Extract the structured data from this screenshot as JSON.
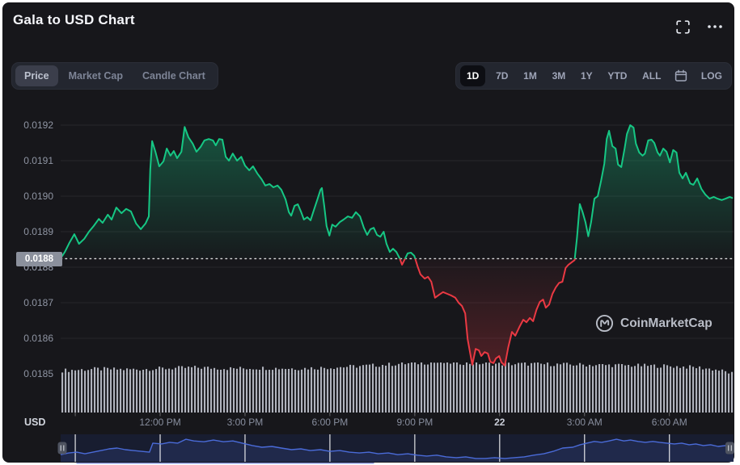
{
  "header": {
    "title": "Gala to USD Chart"
  },
  "toolbar": {
    "chart_type_tabs": [
      {
        "label": "Price",
        "active": true
      },
      {
        "label": "Market Cap",
        "active": false
      },
      {
        "label": "Candle Chart",
        "active": false
      }
    ],
    "range_tabs": [
      {
        "label": "1D",
        "active": true
      },
      {
        "label": "7D",
        "active": false
      },
      {
        "label": "1M",
        "active": false
      },
      {
        "label": "3M",
        "active": false
      },
      {
        "label": "1Y",
        "active": false
      },
      {
        "label": "YTD",
        "active": false
      },
      {
        "label": "ALL",
        "active": false
      }
    ],
    "log_label": "LOG"
  },
  "watermark": {
    "text": "CoinMarketCap"
  },
  "axis": {
    "usd_label": "USD"
  },
  "price_badge": {
    "value": "0.0188"
  },
  "colors": {
    "green": "#16c784",
    "red": "#ea3943",
    "nav_line": "#4a6bd8",
    "nav_fill": "rgba(74,107,216,0.16)",
    "volume_bar": "#c6cad4",
    "badge_bg": "#8b909c",
    "grid": "rgba(255,255,255,0.07)",
    "dotted": "rgba(255,255,255,0.85)"
  },
  "chart_data": {
    "type": "area",
    "title": "Gala to USD Chart",
    "pair": "GALA/USD",
    "range_selected": "1D",
    "legend_position": "none",
    "grid": "horizontal-only",
    "x_unit": "minutes from start (~8:30 AM Nov 21 to ~8:20 AM Nov 22)",
    "x_domain": [
      0,
      1427
    ],
    "y_domain": [
      0.018391,
      0.01925
    ],
    "threshold": 0.018824,
    "y_ticks": [
      0.0192,
      0.0191,
      0.019,
      0.0189,
      0.0188,
      0.0187,
      0.0186,
      0.0185
    ],
    "x_ticks": [
      {
        "t": 31,
        "label": ""
      },
      {
        "t": 211,
        "label": "12:00 PM"
      },
      {
        "t": 391,
        "label": "3:00 PM"
      },
      {
        "t": 571,
        "label": "6:00 PM"
      },
      {
        "t": 751,
        "label": "9:00 PM"
      },
      {
        "t": 931,
        "label": "22",
        "strong": true
      },
      {
        "t": 1111,
        "label": "3:00 AM"
      },
      {
        "t": 1291,
        "label": "6:00 AM"
      }
    ],
    "series": {
      "name": "GALA price (USD)",
      "points": [
        [
          0,
          0.018825
        ],
        [
          9,
          0.018843
        ],
        [
          19,
          0.01887
        ],
        [
          29,
          0.018893
        ],
        [
          39,
          0.018866
        ],
        [
          50,
          0.01888
        ],
        [
          60,
          0.0189
        ],
        [
          70,
          0.018916
        ],
        [
          81,
          0.018936
        ],
        [
          89,
          0.018925
        ],
        [
          100,
          0.018948
        ],
        [
          108,
          0.018934
        ],
        [
          118,
          0.018968
        ],
        [
          129,
          0.018952
        ],
        [
          139,
          0.018964
        ],
        [
          149,
          0.018957
        ],
        [
          160,
          0.018923
        ],
        [
          170,
          0.018907
        ],
        [
          180,
          0.018923
        ],
        [
          187,
          0.018943
        ],
        [
          190,
          0.019075
        ],
        [
          194,
          0.019155
        ],
        [
          201,
          0.019125
        ],
        [
          209,
          0.019084
        ],
        [
          218,
          0.019098
        ],
        [
          225,
          0.019134
        ],
        [
          233,
          0.019114
        ],
        [
          240,
          0.019127
        ],
        [
          247,
          0.019107
        ],
        [
          256,
          0.019125
        ],
        [
          263,
          0.019195
        ],
        [
          271,
          0.019166
        ],
        [
          280,
          0.019148
        ],
        [
          288,
          0.019125
        ],
        [
          297,
          0.019139
        ],
        [
          305,
          0.019157
        ],
        [
          314,
          0.019161
        ],
        [
          323,
          0.019157
        ],
        [
          329,
          0.019143
        ],
        [
          336,
          0.019161
        ],
        [
          343,
          0.019159
        ],
        [
          350,
          0.019111
        ],
        [
          357,
          0.0191
        ],
        [
          365,
          0.01912
        ],
        [
          374,
          0.0191
        ],
        [
          383,
          0.019111
        ],
        [
          391,
          0.019086
        ],
        [
          400,
          0.019073
        ],
        [
          408,
          0.019084
        ],
        [
          417,
          0.019064
        ],
        [
          426,
          0.019048
        ],
        [
          434,
          0.01903
        ],
        [
          443,
          0.019034
        ],
        [
          451,
          0.019025
        ],
        [
          460,
          0.01903
        ],
        [
          468,
          0.019018
        ],
        [
          477,
          0.018991
        ],
        [
          484,
          0.018955
        ],
        [
          489,
          0.018945
        ],
        [
          496,
          0.018973
        ],
        [
          503,
          0.018977
        ],
        [
          510,
          0.018955
        ],
        [
          516,
          0.018934
        ],
        [
          523,
          0.018941
        ],
        [
          530,
          0.018932
        ],
        [
          537,
          0.018961
        ],
        [
          544,
          0.018989
        ],
        [
          551,
          0.019018
        ],
        [
          554,
          0.019023
        ],
        [
          559,
          0.018973
        ],
        [
          564,
          0.018916
        ],
        [
          570,
          0.018889
        ],
        [
          576,
          0.01892
        ],
        [
          583,
          0.018914
        ],
        [
          592,
          0.018927
        ],
        [
          600,
          0.018934
        ],
        [
          609,
          0.018943
        ],
        [
          618,
          0.018939
        ],
        [
          626,
          0.018955
        ],
        [
          635,
          0.018943
        ],
        [
          643,
          0.018911
        ],
        [
          650,
          0.018891
        ],
        [
          657,
          0.018907
        ],
        [
          664,
          0.018911
        ],
        [
          671,
          0.018891
        ],
        [
          678,
          0.018886
        ],
        [
          685,
          0.0189
        ],
        [
          691,
          0.018866
        ],
        [
          698,
          0.018843
        ],
        [
          705,
          0.018852
        ],
        [
          712,
          0.018843
        ],
        [
          719,
          0.018825
        ],
        [
          724,
          0.018807
        ],
        [
          729,
          0.01882
        ],
        [
          736,
          0.018839
        ],
        [
          743,
          0.018841
        ],
        [
          750,
          0.018832
        ],
        [
          757,
          0.018802
        ],
        [
          763,
          0.01878
        ],
        [
          772,
          0.018768
        ],
        [
          779,
          0.018773
        ],
        [
          786,
          0.018759
        ],
        [
          794,
          0.018714
        ],
        [
          803,
          0.018723
        ],
        [
          811,
          0.01873
        ],
        [
          820,
          0.018725
        ],
        [
          829,
          0.01872
        ],
        [
          837,
          0.018714
        ],
        [
          844,
          0.0187
        ],
        [
          851,
          0.018691
        ],
        [
          858,
          0.01867
        ],
        [
          863,
          0.018598
        ],
        [
          868,
          0.018561
        ],
        [
          873,
          0.018525
        ],
        [
          880,
          0.01857
        ],
        [
          887,
          0.018566
        ],
        [
          892,
          0.01855
        ],
        [
          899,
          0.018561
        ],
        [
          906,
          0.018557
        ],
        [
          911,
          0.018534
        ],
        [
          918,
          0.01853
        ],
        [
          923,
          0.018543
        ],
        [
          930,
          0.01855
        ],
        [
          935,
          0.018532
        ],
        [
          942,
          0.018523
        ],
        [
          949,
          0.018573
        ],
        [
          957,
          0.018618
        ],
        [
          964,
          0.018607
        ],
        [
          973,
          0.018632
        ],
        [
          981,
          0.018652
        ],
        [
          988,
          0.018645
        ],
        [
          995,
          0.018657
        ],
        [
          1002,
          0.018648
        ],
        [
          1009,
          0.01868
        ],
        [
          1016,
          0.018702
        ],
        [
          1023,
          0.018709
        ],
        [
          1029,
          0.018686
        ],
        [
          1036,
          0.018695
        ],
        [
          1043,
          0.018725
        ],
        [
          1050,
          0.018743
        ],
        [
          1057,
          0.018756
        ],
        [
          1064,
          0.018759
        ],
        [
          1071,
          0.018798
        ],
        [
          1077,
          0.018807
        ],
        [
          1084,
          0.018814
        ],
        [
          1090,
          0.01882
        ],
        [
          1095,
          0.018882
        ],
        [
          1101,
          0.018978
        ],
        [
          1107,
          0.018955
        ],
        [
          1113,
          0.018927
        ],
        [
          1119,
          0.018887
        ],
        [
          1125,
          0.018927
        ],
        [
          1132,
          0.018993
        ],
        [
          1139,
          0.019
        ],
        [
          1146,
          0.019043
        ],
        [
          1153,
          0.019091
        ],
        [
          1158,
          0.019161
        ],
        [
          1163,
          0.019184
        ],
        [
          1170,
          0.019141
        ],
        [
          1177,
          0.019134
        ],
        [
          1182,
          0.019089
        ],
        [
          1189,
          0.019082
        ],
        [
          1196,
          0.019134
        ],
        [
          1201,
          0.019175
        ],
        [
          1208,
          0.0192
        ],
        [
          1215,
          0.019193
        ],
        [
          1220,
          0.019148
        ],
        [
          1227,
          0.019123
        ],
        [
          1234,
          0.019114
        ],
        [
          1239,
          0.01912
        ],
        [
          1246,
          0.019157
        ],
        [
          1253,
          0.019159
        ],
        [
          1259,
          0.01915
        ],
        [
          1266,
          0.019123
        ],
        [
          1271,
          0.019114
        ],
        [
          1278,
          0.019134
        ],
        [
          1285,
          0.019125
        ],
        [
          1292,
          0.019095
        ],
        [
          1299,
          0.01913
        ],
        [
          1306,
          0.019123
        ],
        [
          1312,
          0.019066
        ],
        [
          1319,
          0.01905
        ],
        [
          1326,
          0.019066
        ],
        [
          1335,
          0.019036
        ],
        [
          1342,
          0.019032
        ],
        [
          1350,
          0.01905
        ],
        [
          1359,
          0.01902
        ],
        [
          1367,
          0.019005
        ],
        [
          1376,
          0.018993
        ],
        [
          1385,
          0.018998
        ],
        [
          1393,
          0.018993
        ],
        [
          1402,
          0.018989
        ],
        [
          1410,
          0.018993
        ],
        [
          1419,
          0.018998
        ],
        [
          1424,
          0.018995
        ]
      ]
    },
    "volume_profile": [
      [
        0,
        0.84
      ],
      [
        0.05,
        0.87
      ],
      [
        0.1,
        0.86
      ],
      [
        0.15,
        0.88
      ],
      [
        0.2,
        0.9
      ],
      [
        0.25,
        0.88
      ],
      [
        0.3,
        0.89
      ],
      [
        0.35,
        0.88
      ],
      [
        0.4,
        0.9
      ],
      [
        0.45,
        0.93
      ],
      [
        0.5,
        0.97
      ],
      [
        0.55,
        1.0
      ],
      [
        0.6,
        0.99
      ],
      [
        0.65,
        0.97
      ],
      [
        0.7,
        0.97
      ],
      [
        0.75,
        0.96
      ],
      [
        0.8,
        0.95
      ],
      [
        0.85,
        0.94
      ],
      [
        0.9,
        0.93
      ],
      [
        0.95,
        0.9
      ],
      [
        0.98,
        0.85
      ],
      [
        1,
        0.78
      ]
    ],
    "navigator": {
      "points": [
        [
          0,
          0.74
        ],
        [
          0.012,
          0.68
        ],
        [
          0.024,
          0.65
        ],
        [
          0.036,
          0.71
        ],
        [
          0.048,
          0.65
        ],
        [
          0.06,
          0.59
        ],
        [
          0.072,
          0.53
        ],
        [
          0.084,
          0.5
        ],
        [
          0.096,
          0.56
        ],
        [
          0.108,
          0.59
        ],
        [
          0.12,
          0.62
        ],
        [
          0.132,
          0.65
        ],
        [
          0.137,
          0.32
        ],
        [
          0.15,
          0.35
        ],
        [
          0.162,
          0.29
        ],
        [
          0.174,
          0.32
        ],
        [
          0.186,
          0.18
        ],
        [
          0.198,
          0.24
        ],
        [
          0.213,
          0.27
        ],
        [
          0.227,
          0.21
        ],
        [
          0.242,
          0.27
        ],
        [
          0.256,
          0.24
        ],
        [
          0.27,
          0.32
        ],
        [
          0.285,
          0.41
        ],
        [
          0.299,
          0.47
        ],
        [
          0.314,
          0.44
        ],
        [
          0.328,
          0.5
        ],
        [
          0.343,
          0.56
        ],
        [
          0.357,
          0.53
        ],
        [
          0.371,
          0.59
        ],
        [
          0.386,
          0.56
        ],
        [
          0.4,
          0.62
        ],
        [
          0.415,
          0.59
        ],
        [
          0.429,
          0.65
        ],
        [
          0.444,
          0.68
        ],
        [
          0.458,
          0.65
        ],
        [
          0.472,
          0.71
        ],
        [
          0.487,
          0.68
        ],
        [
          0.501,
          0.74
        ],
        [
          0.516,
          0.71
        ],
        [
          0.53,
          0.76
        ],
        [
          0.544,
          0.79
        ],
        [
          0.559,
          0.76
        ],
        [
          0.573,
          0.82
        ],
        [
          0.588,
          0.85
        ],
        [
          0.602,
          0.82
        ],
        [
          0.617,
          0.88
        ],
        [
          0.631,
          0.88
        ],
        [
          0.645,
          0.85
        ],
        [
          0.66,
          0.88
        ],
        [
          0.674,
          0.85
        ],
        [
          0.689,
          0.82
        ],
        [
          0.703,
          0.76
        ],
        [
          0.718,
          0.71
        ],
        [
          0.732,
          0.62
        ],
        [
          0.746,
          0.5
        ],
        [
          0.761,
          0.47
        ],
        [
          0.772,
          0.38
        ],
        [
          0.782,
          0.32
        ],
        [
          0.793,
          0.26
        ],
        [
          0.804,
          0.29
        ],
        [
          0.815,
          0.24
        ],
        [
          0.826,
          0.18
        ],
        [
          0.837,
          0.24
        ],
        [
          0.847,
          0.21
        ],
        [
          0.858,
          0.26
        ],
        [
          0.869,
          0.29
        ],
        [
          0.88,
          0.26
        ],
        [
          0.89,
          0.29
        ],
        [
          0.901,
          0.32
        ],
        [
          0.912,
          0.35
        ],
        [
          0.923,
          0.32
        ],
        [
          0.934,
          0.38
        ],
        [
          0.944,
          0.35
        ],
        [
          0.955,
          0.41
        ],
        [
          0.966,
          0.38
        ],
        [
          0.977,
          0.44
        ],
        [
          0.988,
          0.41
        ],
        [
          1,
          0.47
        ]
      ]
    }
  }
}
